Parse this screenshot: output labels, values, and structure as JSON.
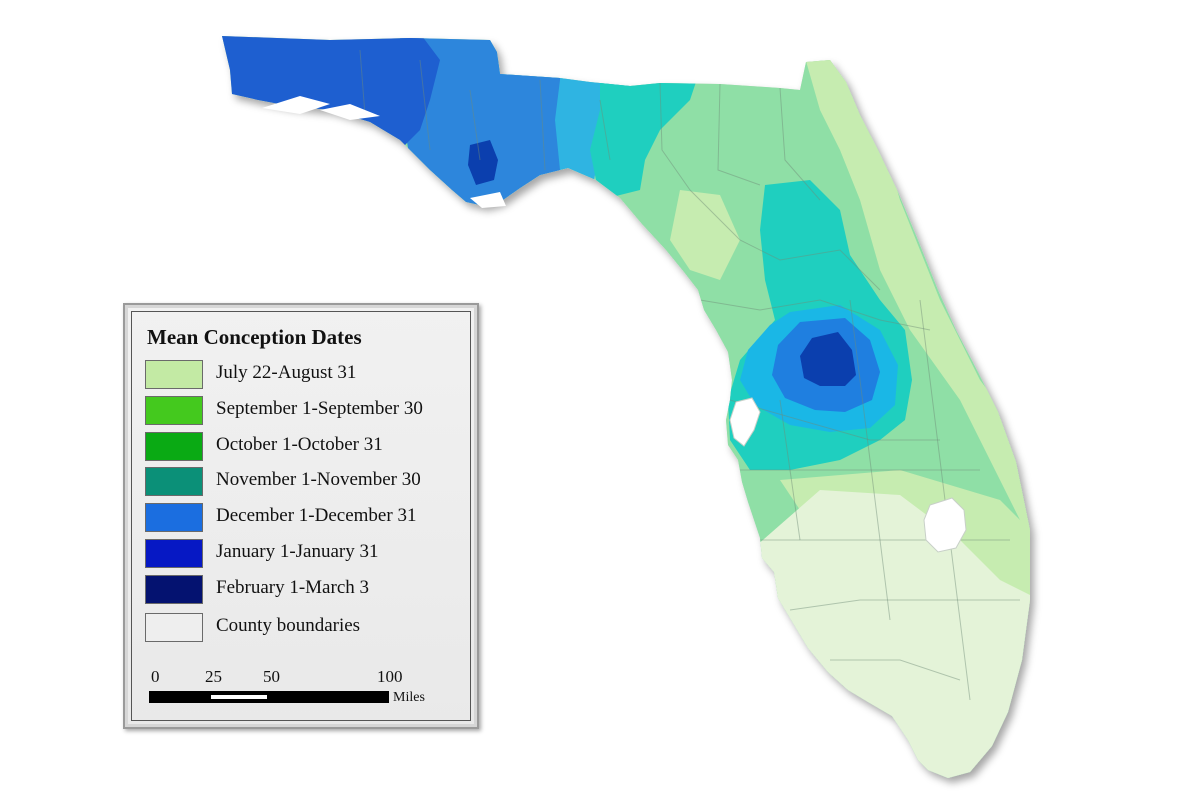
{
  "legend": {
    "title": "Mean Conception Dates",
    "items": [
      {
        "label": "July 22-August 31",
        "color": "#c3eaa4"
      },
      {
        "label": "September 1-September 30",
        "color": "#44c91e"
      },
      {
        "label": "October 1-October 31",
        "color": "#0aaa14"
      },
      {
        "label": "November 1-November 30",
        "color": "#0b9078"
      },
      {
        "label": "December 1-December 31",
        "color": "#1b6ee0"
      },
      {
        "label": "January 1-January 31",
        "color": "#0618c4"
      },
      {
        "label": "February 1-March 3",
        "color": "#041270"
      },
      {
        "label": "County boundaries",
        "color": "#eeeeee"
      }
    ]
  },
  "scale": {
    "ticks": [
      "0",
      "25",
      "50",
      "100"
    ],
    "unit": "Miles"
  },
  "map_colors": {
    "panhandle_west": "#1e5fd0",
    "panhandle_mid": "#2d86dc",
    "panhandle_cyan": "#2fb4e2",
    "teal": "#1fcfbf",
    "mint": "#8fdfa6",
    "pale_green": "#c6ecb0",
    "south_pale": "#e4f3d8",
    "ring_cyan": "#1ab7e6",
    "ring_blue": "#1f7fe0",
    "core_navy": "#0b3fae"
  }
}
